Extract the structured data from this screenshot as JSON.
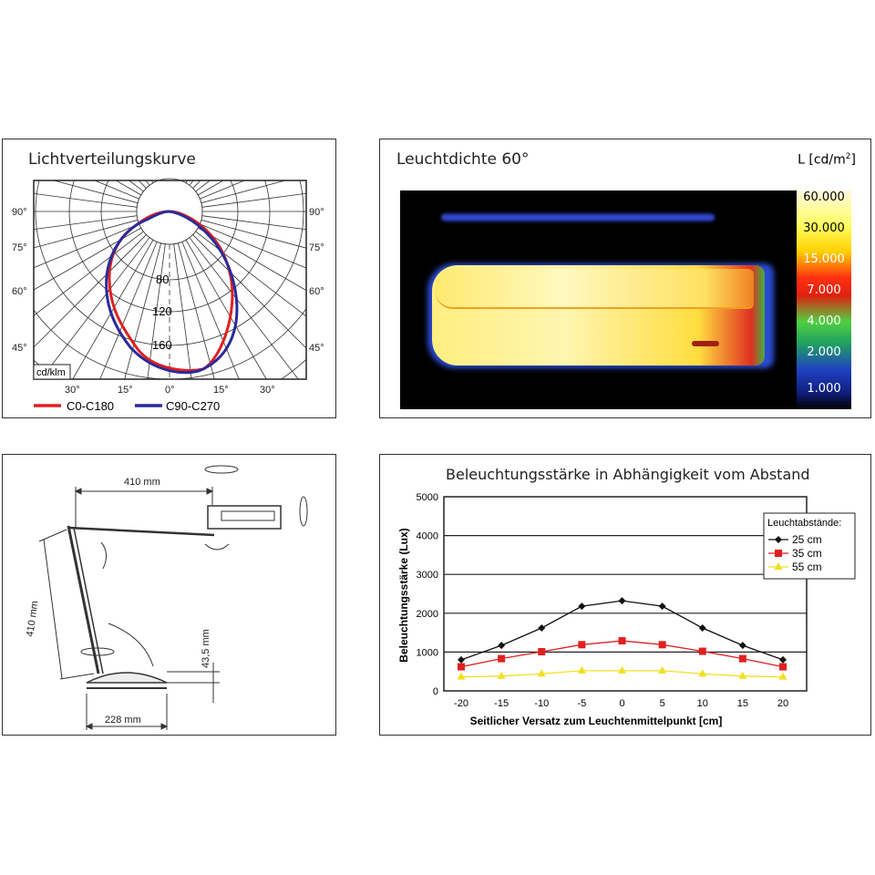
{
  "chart_data": [
    {
      "type": "polar",
      "title": "Lichtverteilungskurve",
      "unit_label": "cd/klm",
      "radial_ticks": [
        "80",
        "120",
        "160"
      ],
      "angle_labels_side": [
        "90°",
        "75°",
        "60°",
        "45°"
      ],
      "angle_labels_bottom": [
        "30°",
        "15°",
        "0°",
        "15°",
        "30°"
      ],
      "series": [
        {
          "name": "C0-C180",
          "color": "#e02020"
        },
        {
          "name": "C90-C270",
          "color": "#2a2a9a"
        }
      ]
    },
    {
      "type": "heatmap",
      "title": "Leuchtdichte 60°",
      "unit_prefix": "L [cd/m",
      "unit_sup": "2",
      "unit_suffix": "]",
      "scale": [
        "60.000",
        "30.000",
        "15.000",
        "7.000",
        "4.000",
        "2.000",
        "1.000"
      ]
    },
    {
      "type": "line",
      "title": "Beleuchtungsstärke in Abhängigkeit vom Abstand",
      "xlabel": "Seitlicher Versatz zum Leuchtenmittelpunkt [cm]",
      "ylabel": "Beleuchtungsstärke (Lux)",
      "x": [
        -20,
        -15,
        -10,
        -5,
        0,
        5,
        10,
        15,
        20
      ],
      "ylim": [
        0,
        5000
      ],
      "yticks": [
        0,
        1000,
        2000,
        3000,
        4000,
        5000
      ],
      "legend_title": "Leuchtabstände:",
      "legend_placement": "top-right",
      "grid": true,
      "series": [
        {
          "name": "25 cm",
          "color": "#111111",
          "marker": "diamond",
          "values": [
            800,
            1170,
            1620,
            2180,
            2320,
            2180,
            1620,
            1170,
            800
          ]
        },
        {
          "name": "35 cm",
          "color": "#e02020",
          "marker": "square",
          "values": [
            620,
            830,
            1010,
            1190,
            1290,
            1190,
            1020,
            830,
            620
          ]
        },
        {
          "name": "55 cm",
          "color": "#f2e020",
          "marker": "triangle",
          "values": [
            360,
            380,
            440,
            520,
            520,
            520,
            440,
            380,
            360
          ]
        }
      ]
    }
  ],
  "dimensions": {
    "arm_length": "410 mm",
    "lower_arm": "410 mm",
    "base_height": "43,5 mm",
    "base_width": "228 mm"
  }
}
